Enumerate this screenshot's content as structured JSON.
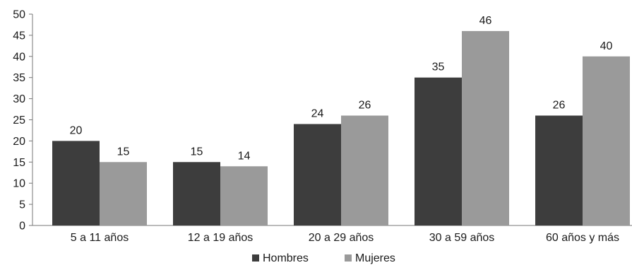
{
  "chart_data": {
    "type": "bar",
    "categories": [
      "5 a 11 años",
      "12 a 19 años",
      "20 a 29 años",
      "30 a 59 años",
      "60 años y más"
    ],
    "series": [
      {
        "name": "Hombres",
        "values": [
          20,
          15,
          24,
          35,
          26
        ],
        "color": "#3d3d3d"
      },
      {
        "name": "Mujeres",
        "values": [
          15,
          14,
          26,
          46,
          40
        ],
        "color": "#9a9a9a"
      }
    ],
    "ylim": [
      0,
      50
    ],
    "yticks": [
      0,
      5,
      10,
      15,
      20,
      25,
      30,
      35,
      40,
      45,
      50
    ],
    "title": "",
    "xlabel": "",
    "ylabel": "",
    "grid": false,
    "legend_position": "bottom-center",
    "data_labels": true
  }
}
